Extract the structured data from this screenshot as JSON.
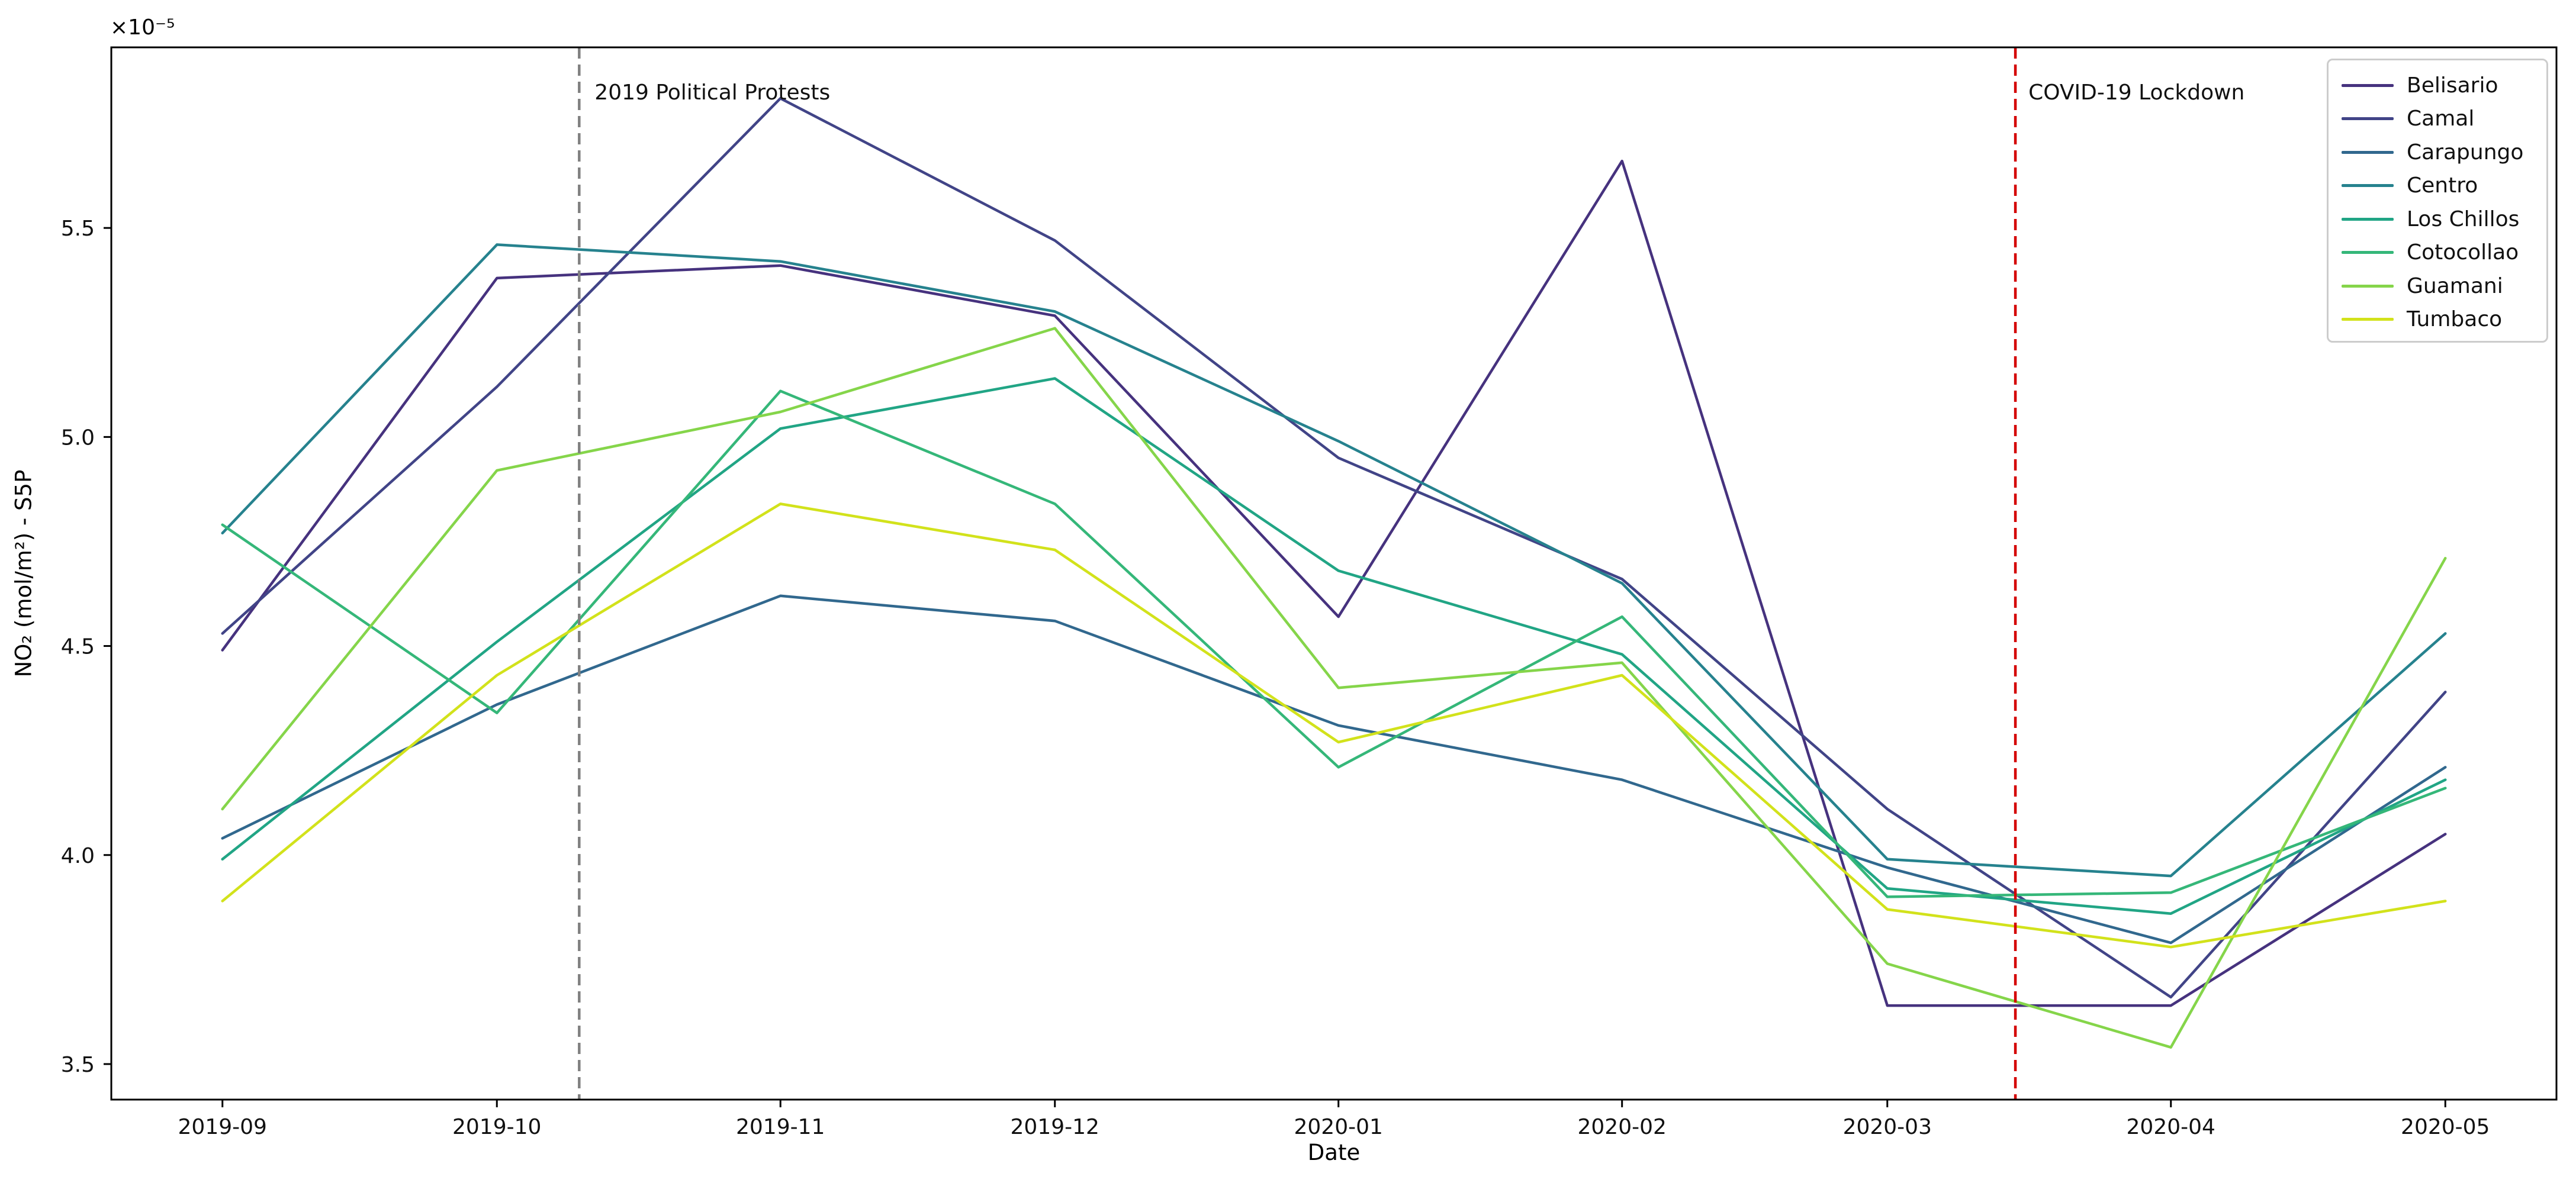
{
  "figure": {
    "offset_label": "×10⁻⁵",
    "xlabel": "Date",
    "ylabel": "NO₂ (mol/m²) - S5P"
  },
  "chart_data": {
    "type": "line",
    "title": "",
    "xlabel": "Date",
    "ylabel": "NO2 (mol/m2) - S5P",
    "y_unit_multiplier": "1e-5",
    "grid": false,
    "legend_position": "upper right",
    "categories": [
      "2019-09",
      "2019-10",
      "2019-11",
      "2019-12",
      "2020-01",
      "2020-02",
      "2020-03",
      "2020-04",
      "2020-05"
    ],
    "x_days": [
      0,
      30,
      61,
      91,
      122,
      153,
      182,
      213,
      243
    ],
    "xlim_days": [
      -12.15,
      255.15
    ],
    "ylim": [
      3.415,
      5.932
    ],
    "y_ticks": [
      3.5,
      4.0,
      4.5,
      5.0,
      5.5
    ],
    "series": [
      {
        "name": "Belisario",
        "color": "#46327e",
        "values": [
          4.49,
          5.38,
          5.41,
          5.29,
          4.57,
          5.66,
          3.64,
          3.64,
          4.05
        ]
      },
      {
        "name": "Camal",
        "color": "#414487",
        "values": [
          4.53,
          5.12,
          5.81,
          5.47,
          4.95,
          4.66,
          4.11,
          3.66,
          4.39
        ]
      },
      {
        "name": "Carapungo",
        "color": "#31688e",
        "values": [
          4.04,
          4.36,
          4.62,
          4.56,
          4.31,
          4.18,
          3.97,
          3.79,
          4.21
        ]
      },
      {
        "name": "Centro",
        "color": "#26828e",
        "values": [
          4.77,
          5.46,
          5.42,
          5.3,
          4.99,
          4.65,
          3.99,
          3.95,
          4.53
        ]
      },
      {
        "name": "Los Chillos",
        "color": "#21a585",
        "values": [
          3.99,
          4.51,
          5.02,
          5.14,
          4.68,
          4.48,
          3.92,
          3.86,
          4.18
        ]
      },
      {
        "name": "Cotocollao",
        "color": "#35b779",
        "values": [
          4.79,
          4.34,
          5.11,
          4.84,
          4.21,
          4.57,
          3.9,
          3.91,
          4.16
        ]
      },
      {
        "name": "Guamani",
        "color": "#85d54a",
        "values": [
          4.11,
          4.92,
          5.06,
          5.26,
          4.4,
          4.46,
          3.74,
          3.54,
          4.71
        ]
      },
      {
        "name": "Tumbaco",
        "color": "#d2e21b",
        "values": [
          3.89,
          4.43,
          4.84,
          4.73,
          4.27,
          4.43,
          3.87,
          3.78,
          3.89
        ]
      }
    ],
    "annotations": [
      {
        "label": "2019 Political Protests",
        "day": 39,
        "color": "#808080",
        "style": "dashed"
      },
      {
        "label": "COVID-19 Lockdown",
        "day": 196,
        "color": "#d40000",
        "style": "dashed"
      }
    ]
  }
}
